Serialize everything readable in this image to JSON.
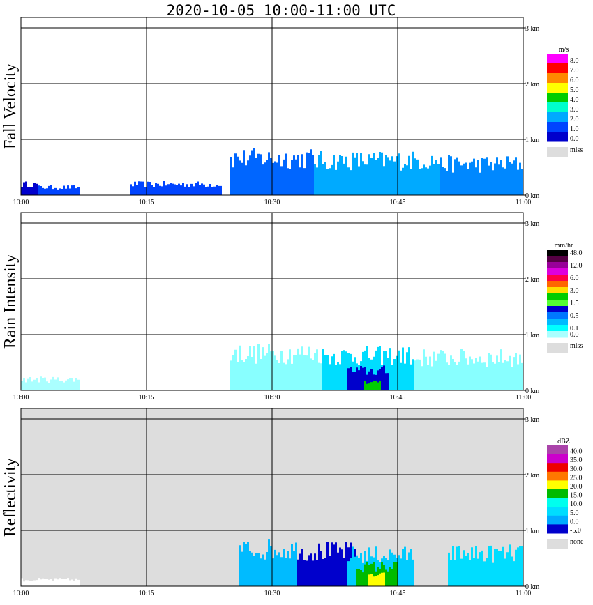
{
  "title": "2020-10-05   10:00-11:00 UTC",
  "x_tick_labels": [
    "10:00",
    "10:15",
    "10:30",
    "10:45",
    "11:00"
  ],
  "y_tick_labels": [
    "0 km",
    "1 km",
    "2 km",
    "3 km"
  ],
  "chart_data": [
    {
      "type": "heatmap",
      "ylabel": "Fall Velocity",
      "x": [
        "10:00",
        "10:15",
        "10:30",
        "10:45",
        "11:00"
      ],
      "ylim_km": [
        0,
        3
      ],
      "unit": "m/s",
      "legend": [
        {
          "label": "8.0",
          "color": "#ff00ff"
        },
        {
          "label": "7.0",
          "color": "#ff0000"
        },
        {
          "label": "6.0",
          "color": "#ff8800"
        },
        {
          "label": "5.0",
          "color": "#ffff00"
        },
        {
          "label": "4.0",
          "color": "#00cc00"
        },
        {
          "label": "3.0",
          "color": "#00ffcc"
        },
        {
          "label": "2.0",
          "color": "#00aaff"
        },
        {
          "label": "1.0",
          "color": "#0044ff"
        },
        {
          "label": "0.0",
          "color": "#0000cc"
        }
      ],
      "missing_label": "miss",
      "missing_color": "#dddddd",
      "background": "#ffffff",
      "echo_regions": [
        {
          "t": [
            0.0,
            2.0
          ],
          "top_km": 0.25,
          "color": "#0000cc"
        },
        {
          "t": [
            2.0,
            7.0
          ],
          "top_km": 0.18,
          "color": "#0044ff"
        },
        {
          "t": [
            13.0,
            24.0
          ],
          "top_km": 0.25,
          "color": "#0044ff"
        },
        {
          "t": [
            25.0,
            35.0
          ],
          "top_km": 0.85,
          "color": "#0066ff"
        },
        {
          "t": [
            35.0,
            50.0
          ],
          "top_km": 0.8,
          "color": "#00aaff"
        },
        {
          "t": [
            50.0,
            60.0
          ],
          "top_km": 0.72,
          "color": "#0088ff"
        }
      ]
    },
    {
      "type": "heatmap",
      "ylabel": "Rain Intensity",
      "x": [
        "10:00",
        "10:15",
        "10:30",
        "10:45",
        "11:00"
      ],
      "ylim_km": [
        0,
        3
      ],
      "unit": "mm/hr",
      "legend": [
        {
          "label": "48.0",
          "color": "#000000"
        },
        {
          "label": "",
          "color": "#550044"
        },
        {
          "label": "12.0",
          "color": "#990099"
        },
        {
          "label": "",
          "color": "#dd00dd"
        },
        {
          "label": "6.0",
          "color": "#ff0044"
        },
        {
          "label": "",
          "color": "#ff6600"
        },
        {
          "label": "3.0",
          "color": "#ffdd00"
        },
        {
          "label": "",
          "color": "#00cc00"
        },
        {
          "label": "1.5",
          "color": "#55ff33"
        },
        {
          "label": "",
          "color": "#0000cc"
        },
        {
          "label": "0.5",
          "color": "#0077ff"
        },
        {
          "label": "",
          "color": "#00bbff"
        },
        {
          "label": "0.1",
          "color": "#00ffff"
        },
        {
          "label": "0.0",
          "color": "#aaffff"
        }
      ],
      "missing_label": "miss",
      "missing_color": "#dddddd",
      "background": "#ffffff",
      "echo_regions": [
        {
          "t": [
            0.0,
            7.0
          ],
          "top_km": 0.25,
          "color": "#aaffff"
        },
        {
          "t": [
            25.0,
            36.0
          ],
          "top_km": 0.85,
          "color": "#88ffff"
        },
        {
          "t": [
            36.0,
            47.0
          ],
          "top_km": 0.8,
          "color": "#00ddff"
        },
        {
          "t": [
            39.0,
            44.0
          ],
          "top_km": 0.45,
          "color": "#0000cc"
        },
        {
          "t": [
            41.0,
            43.0
          ],
          "top_km": 0.2,
          "color": "#00cc00"
        },
        {
          "t": [
            47.0,
            60.0
          ],
          "top_km": 0.75,
          "color": "#88ffff"
        }
      ]
    },
    {
      "type": "heatmap",
      "ylabel": "Reflectivity",
      "x": [
        "10:00",
        "10:15",
        "10:30",
        "10:45",
        "11:00"
      ],
      "ylim_km": [
        0,
        3
      ],
      "unit": "dBZ",
      "legend": [
        {
          "label": "40.0",
          "color": "#aa44aa"
        },
        {
          "label": "35.0",
          "color": "#cc00cc"
        },
        {
          "label": "30.0",
          "color": "#ee0000"
        },
        {
          "label": "25.0",
          "color": "#ff7700"
        },
        {
          "label": "20.0",
          "color": "#ffff00"
        },
        {
          "label": "15.0",
          "color": "#00bb00"
        },
        {
          "label": "10.0",
          "color": "#00ffee"
        },
        {
          "label": "5.0",
          "color": "#00ddff"
        },
        {
          "label": "0.0",
          "color": "#00aaff"
        },
        {
          "label": "-5.0",
          "color": "#0000cc"
        }
      ],
      "missing_label": "none",
      "missing_color": "#dddddd",
      "background": "#dddddd",
      "echo_regions": [
        {
          "t": [
            0.0,
            7.0
          ],
          "top_km": 0.15,
          "color": "#ffffff"
        },
        {
          "t": [
            26.0,
            33.0
          ],
          "top_km": 0.85,
          "color": "#00bbff"
        },
        {
          "t": [
            33.0,
            40.0
          ],
          "top_km": 0.8,
          "color": "#0000cc"
        },
        {
          "t": [
            39.0,
            47.0
          ],
          "top_km": 0.72,
          "color": "#00ccff"
        },
        {
          "t": [
            40.0,
            45.0
          ],
          "top_km": 0.45,
          "color": "#00bb00"
        },
        {
          "t": [
            41.5,
            43.5
          ],
          "top_km": 0.25,
          "color": "#ffff00"
        },
        {
          "t": [
            51.0,
            60.0
          ],
          "top_km": 0.75,
          "color": "#00ddff"
        }
      ]
    }
  ]
}
